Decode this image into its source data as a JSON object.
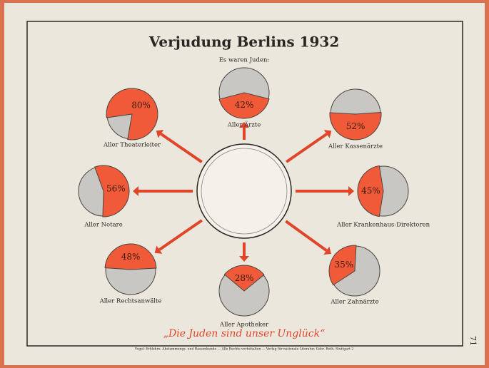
{
  "title": "Verjudung Berlins 1932",
  "subtitle": "Es waren Juden:",
  "slogan": "„Die Juden sind unser Unglück“",
  "footer": "Vogel: Erblehre, Abstammungs- und Rassenkunde — Alle Rechte vorbehalten — Verlag für nationale Literatur, Gebr. Roth, Stuttgart 2",
  "page_number": "71",
  "chart_data": [
    {
      "type": "pie",
      "title": "Aller Theaterleiter",
      "values": [
        80
      ],
      "value_labels": [
        "80%"
      ],
      "color": "#f05a38"
    },
    {
      "type": "pie",
      "title": "Aller Ärzte",
      "values": [
        42
      ],
      "value_labels": [
        "42%"
      ],
      "color": "#f05a38"
    },
    {
      "type": "pie",
      "title": "Aller Kassenärzte",
      "values": [
        52
      ],
      "value_labels": [
        "52%"
      ],
      "color": "#f05a38"
    },
    {
      "type": "pie",
      "title": "Aller Notare",
      "values": [
        56
      ],
      "value_labels": [
        "56%"
      ],
      "color": "#f05a38"
    },
    {
      "type": "pie",
      "title": "Aller Krankenhaus-Direktoren",
      "values": [
        45
      ],
      "value_labels": [
        "45%"
      ],
      "color": "#f05a38"
    },
    {
      "type": "pie",
      "title": "Aller Rechtsanwälte",
      "values": [
        48
      ],
      "value_labels": [
        "48%"
      ],
      "color": "#f05a38"
    },
    {
      "type": "pie",
      "title": "Aller Apotheker",
      "values": [
        28
      ],
      "value_labels": [
        "28%"
      ],
      "color": "#f05a38"
    },
    {
      "type": "pie",
      "title": "Aller Zahnärzte",
      "values": [
        35
      ],
      "value_labels": [
        "35%"
      ],
      "color": "#f05a38"
    }
  ]
}
